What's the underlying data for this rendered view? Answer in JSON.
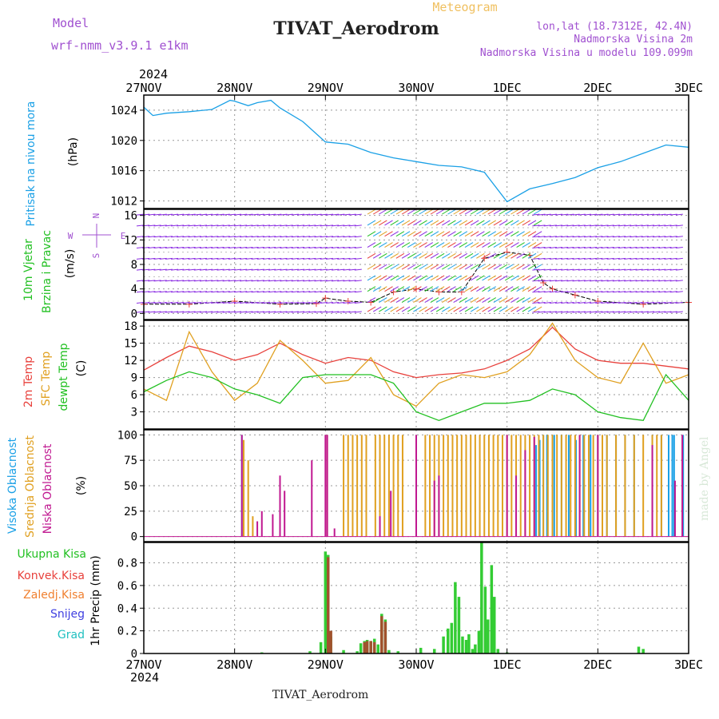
{
  "header": {
    "title": "TIVAT_Aerodrom",
    "model_label": "Model",
    "model_name": "wrf-nmm_v3.9.1 e1km",
    "meteogram_label": "Meteogram",
    "coords": "lon,lat (18.7312E, 42.4N)",
    "elevation": "Nadmorska Visina 2m",
    "model_elevation": "Nadmorska Visina u modelu 109.099m",
    "year": "2024",
    "footer_station": "TIVAT_Aerodrom",
    "watermark": "made by Angel"
  },
  "colors": {
    "pressure": "#1aa0e6",
    "temp2m": "#e8413c",
    "sfc": "#e0a020",
    "dewpt": "#22c022",
    "vis": "#1aa0e6",
    "sred": "#e0a020",
    "nis": "#c01890",
    "title_purple": "#a050d0",
    "meteogram_orange": "#f0c060"
  },
  "chart_data": [
    {
      "id": "pressure",
      "type": "line",
      "ylabel": [
        "Pritisak na nivou mora",
        "(hPa)"
      ],
      "ylim": [
        1011,
        1026
      ],
      "yticks": [
        1012,
        1016,
        1020,
        1024
      ],
      "x": [
        0,
        0.1,
        0.25,
        0.5,
        0.75,
        0.95,
        1.0,
        1.15,
        1.25,
        1.4,
        1.5,
        1.75,
        2.0,
        2.25,
        2.5,
        2.75,
        3.0,
        3.25,
        3.5,
        3.75,
        4.0,
        4.25,
        4.5,
        4.75,
        5.0,
        5.25,
        5.5,
        5.75,
        6.0
      ],
      "series": [
        {
          "key": "pressure",
          "values": [
            1024.4,
            1023.3,
            1023.6,
            1023.8,
            1024.1,
            1025.3,
            1025.2,
            1024.6,
            1025.0,
            1025.3,
            1024.3,
            1022.5,
            1019.8,
            1019.5,
            1018.4,
            1017.7,
            1017.2,
            1016.7,
            1016.5,
            1015.8,
            1011.9,
            1013.6,
            1014.3,
            1015.1,
            1016.4,
            1017.2,
            1018.3,
            1019.4,
            1019.1
          ]
        }
      ]
    },
    {
      "id": "wind",
      "type": "line",
      "ylabel": [
        "10m Vjetar",
        "Brzina i Pravac",
        "(m/s)"
      ],
      "direction_key": [
        "N",
        "E",
        "S",
        "W"
      ],
      "ylim": [
        -1,
        17
      ],
      "yticks": [
        0,
        4,
        8,
        12,
        16
      ],
      "yticks_minor": [
        2,
        6,
        10,
        14
      ],
      "x": [
        0,
        0.5,
        1.0,
        1.5,
        1.9,
        2.0,
        2.25,
        2.5,
        2.75,
        3.0,
        3.25,
        3.5,
        3.75,
        4.0,
        4.25,
        4.4,
        4.5,
        4.75,
        5.0,
        5.5,
        6.0
      ],
      "series": [
        {
          "key": "speed",
          "values": [
            1.5,
            1.5,
            2.0,
            1.5,
            1.6,
            2.5,
            2.0,
            1.8,
            3.5,
            4.0,
            3.5,
            3.5,
            9.0,
            10.0,
            9.5,
            5.0,
            4.0,
            3.0,
            2.0,
            1.5,
            1.8
          ]
        }
      ]
    },
    {
      "id": "temperature",
      "type": "line",
      "ylabel": [
        "2m Temp",
        "SFC Temp",
        "dewpt Temp",
        "(C)"
      ],
      "ylim": [
        0,
        19
      ],
      "yticks": [
        3,
        6,
        9,
        12,
        15,
        18
      ],
      "x": [
        0,
        0.25,
        0.5,
        0.75,
        1.0,
        1.25,
        1.5,
        1.75,
        2.0,
        2.25,
        2.5,
        2.75,
        3.0,
        3.25,
        3.5,
        3.75,
        4.0,
        4.25,
        4.5,
        4.75,
        5.0,
        5.25,
        5.5,
        5.75,
        6.0
      ],
      "series": [
        {
          "key": "temp2m",
          "name": "2m Temp",
          "values": [
            10.3,
            12.5,
            14.5,
            13.5,
            12.0,
            13.0,
            15.0,
            13.0,
            11.5,
            12.5,
            12.0,
            10.0,
            9.0,
            9.5,
            9.8,
            10.5,
            12.0,
            14.0,
            17.8,
            14.0,
            12.0,
            11.5,
            11.5,
            11.0,
            10.5
          ]
        },
        {
          "key": "sfc",
          "name": "SFC Temp",
          "values": [
            7.0,
            5.0,
            17.0,
            10.0,
            5.0,
            8.0,
            15.5,
            12.0,
            8.0,
            8.5,
            12.5,
            6.0,
            4.0,
            8.0,
            9.5,
            9.0,
            10.0,
            13.0,
            18.5,
            12.0,
            9.0,
            8.0,
            15.0,
            8.0,
            9.5
          ]
        },
        {
          "key": "dewpt",
          "name": "dewpt Temp",
          "values": [
            6.5,
            8.5,
            10.0,
            9.0,
            7.0,
            6.0,
            4.5,
            9.0,
            9.5,
            9.5,
            9.5,
            8.0,
            3.0,
            1.5,
            3.0,
            4.5,
            4.5,
            5.0,
            7.0,
            6.0,
            3.0,
            2.0,
            1.5,
            9.5,
            5.0
          ]
        }
      ]
    },
    {
      "id": "clouds",
      "type": "bar",
      "ylabel": [
        "Visoka Oblacnost",
        "Srednja Oblacnost",
        "Niska Oblacnost",
        "(%)"
      ],
      "ylim": [
        -5,
        105
      ],
      "yticks": [
        0,
        25,
        50,
        75,
        100
      ],
      "series": [
        {
          "key": "vis",
          "name": "Visoka Oblacnost",
          "x": [
            1.08,
            4.32,
            4.36,
            4.4,
            4.44,
            4.52,
            4.6,
            4.68,
            4.76,
            4.84,
            4.92,
            5.0,
            5.1,
            5.2,
            5.3,
            5.4,
            5.6,
            5.7,
            5.78,
            5.82,
            5.84,
            5.94
          ],
          "values": [
            100,
            90,
            95,
            100,
            100,
            100,
            100,
            100,
            95,
            100,
            100,
            100,
            100,
            100,
            100,
            100,
            100,
            100,
            100,
            100,
            100,
            100
          ]
        },
        {
          "key": "sred",
          "name": "Srednja Oblacnost",
          "x": [
            1.1,
            1.15,
            1.2,
            2.02,
            2.2,
            2.25,
            2.3,
            2.35,
            2.4,
            2.45,
            2.55,
            2.6,
            2.65,
            2.7,
            2.75,
            2.8,
            2.85,
            3.1,
            3.15,
            3.2,
            3.25,
            3.3,
            3.35,
            3.4,
            3.45,
            3.5,
            3.55,
            3.6,
            3.65,
            3.7,
            3.75,
            3.8,
            3.85,
            3.9,
            3.95,
            4.0,
            4.05,
            4.1,
            4.15,
            4.2,
            4.25,
            4.3,
            4.35,
            4.4,
            4.45,
            4.5,
            4.55,
            4.6,
            4.65,
            4.7,
            4.75,
            4.8,
            4.85,
            4.9,
            4.95,
            5.0,
            5.05,
            5.1,
            5.2,
            5.3,
            5.4,
            5.5,
            5.6,
            5.65,
            5.7
          ],
          "values": [
            95,
            75,
            20,
            100,
            100,
            100,
            100,
            100,
            100,
            100,
            100,
            100,
            100,
            100,
            100,
            100,
            100,
            100,
            100,
            100,
            100,
            100,
            100,
            100,
            100,
            100,
            100,
            100,
            100,
            100,
            100,
            100,
            100,
            100,
            100,
            100,
            100,
            100,
            100,
            100,
            100,
            100,
            100,
            100,
            100,
            100,
            100,
            100,
            100,
            100,
            100,
            100,
            100,
            100,
            100,
            100,
            100,
            100,
            100,
            100,
            100,
            100,
            100,
            100,
            100
          ]
        },
        {
          "key": "nis",
          "name": "Niska Oblacnost",
          "x": [
            1.08,
            1.25,
            1.3,
            1.42,
            1.5,
            1.55,
            1.85,
            2.0,
            2.02,
            2.1,
            2.6,
            2.72,
            3.0,
            3.2,
            3.25,
            4.0,
            4.1,
            4.2,
            4.3,
            4.8,
            5.0,
            5.6,
            5.85,
            5.93
          ],
          "values": [
            100,
            15,
            25,
            22,
            60,
            45,
            75,
            100,
            100,
            8,
            20,
            45,
            100,
            55,
            60,
            100,
            60,
            85,
            98,
            100,
            100,
            90,
            55,
            100
          ]
        }
      ]
    },
    {
      "id": "precip",
      "type": "bar",
      "ylabel": [
        "1hr Precip (mm)"
      ],
      "legend": [
        "Ukupna Kisa",
        "Konvek.Kisa",
        "Zaledj.Kisa",
        "Snijeg",
        "Grad"
      ],
      "legend_keys": [
        "total",
        "konvek",
        "zaledj",
        "snijeg",
        "grad"
      ],
      "ylim": [
        0,
        0.98
      ],
      "yticks": [
        0,
        0.2,
        0.4,
        0.6,
        0.8
      ],
      "series": [
        {
          "key": "total",
          "name": "Ukupna Kisa",
          "x": [
            1.3,
            1.83,
            1.95,
            2.0,
            2.03,
            2.06,
            2.2,
            2.35,
            2.39,
            2.43,
            2.46,
            2.5,
            2.54,
            2.58,
            2.62,
            2.66,
            2.7,
            2.8,
            3.05,
            3.2,
            3.3,
            3.35,
            3.39,
            3.43,
            3.47,
            3.51,
            3.55,
            3.58,
            3.62,
            3.65,
            3.69,
            3.72,
            3.76,
            3.79,
            3.83,
            3.86,
            3.9,
            4.0,
            5.45,
            5.5
          ],
          "values": [
            0.01,
            0.02,
            0.1,
            0.9,
            0.87,
            0.15,
            0.03,
            0.02,
            0.09,
            0.11,
            0.12,
            0.11,
            0.13,
            0.08,
            0.35,
            0.3,
            0.03,
            0.02,
            0.05,
            0.04,
            0.15,
            0.22,
            0.27,
            0.63,
            0.5,
            0.15,
            0.12,
            0.17,
            0.04,
            0.08,
            0.2,
            0.98,
            0.59,
            0.3,
            0.78,
            0.5,
            0.04,
            0.01,
            0.06,
            0.04
          ]
        },
        {
          "key": "konvek",
          "name": "Konvek.Kisa",
          "x": [
            2.03,
            2.06,
            2.43,
            2.46,
            2.5,
            2.54,
            2.62,
            2.66
          ],
          "values": [
            0.85,
            0.2,
            0.1,
            0.11,
            0.11,
            0.1,
            0.33,
            0.28
          ]
        }
      ]
    }
  ],
  "x_axis": {
    "top_labels": [
      "27NOV",
      "28NOV",
      "29NOV",
      "30NOV",
      "1DEC",
      "2DEC",
      "3DEC"
    ],
    "bottom_labels": [
      "27NOV",
      "28NOV",
      "29NOV",
      "30NOV",
      "1DEC",
      "2DEC",
      "3DEC"
    ]
  }
}
